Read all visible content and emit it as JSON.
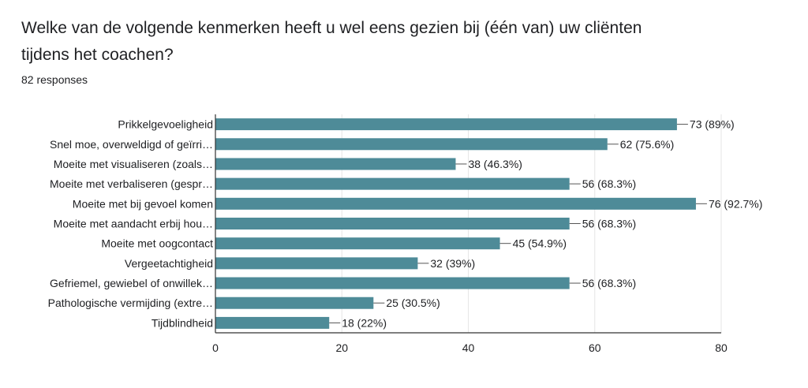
{
  "question": {
    "title": "Welke van de volgende kenmerken heeft u wel eens gezien bij (één van) uw cliënten tijdens het coachen?",
    "responses": "82 responses"
  },
  "colors": {
    "bar": "#4e8b98",
    "grid": "#e6e6e6",
    "axis": "#333333"
  },
  "chart_data": {
    "type": "bar",
    "orientation": "horizontal",
    "title": "",
    "xlabel": "",
    "ylabel": "",
    "xlim": [
      0,
      80
    ],
    "x_ticks": [
      0,
      20,
      40,
      60,
      80
    ],
    "grid": true,
    "categories": [
      "Prikkelgevoeligheid",
      "Snel moe, overweldigd of geïrri…",
      "Moeite met visualiseren (zoals…",
      "Moeite met verbaliseren (gespr…",
      "Moeite met bij gevoel komen",
      "Moeite met aandacht erbij hou…",
      "Moeite met oogcontact",
      "Vergeetachtigheid",
      "Gefriemel, gewiebel of onwillek…",
      "Pathologische vermijding (extre…",
      "Tijdblindheid"
    ],
    "values": [
      73,
      62,
      38,
      56,
      76,
      56,
      45,
      32,
      56,
      25,
      18
    ],
    "value_labels": [
      "73 (89%)",
      "62 (75.6%)",
      "38 (46.3%)",
      "56 (68.3%)",
      "76 (92.7%)",
      "56 (68.3%)",
      "45 (54.9%)",
      "32 (39%)",
      "56 (68.3%)",
      "25 (30.5%)",
      "18 (22%)"
    ]
  }
}
